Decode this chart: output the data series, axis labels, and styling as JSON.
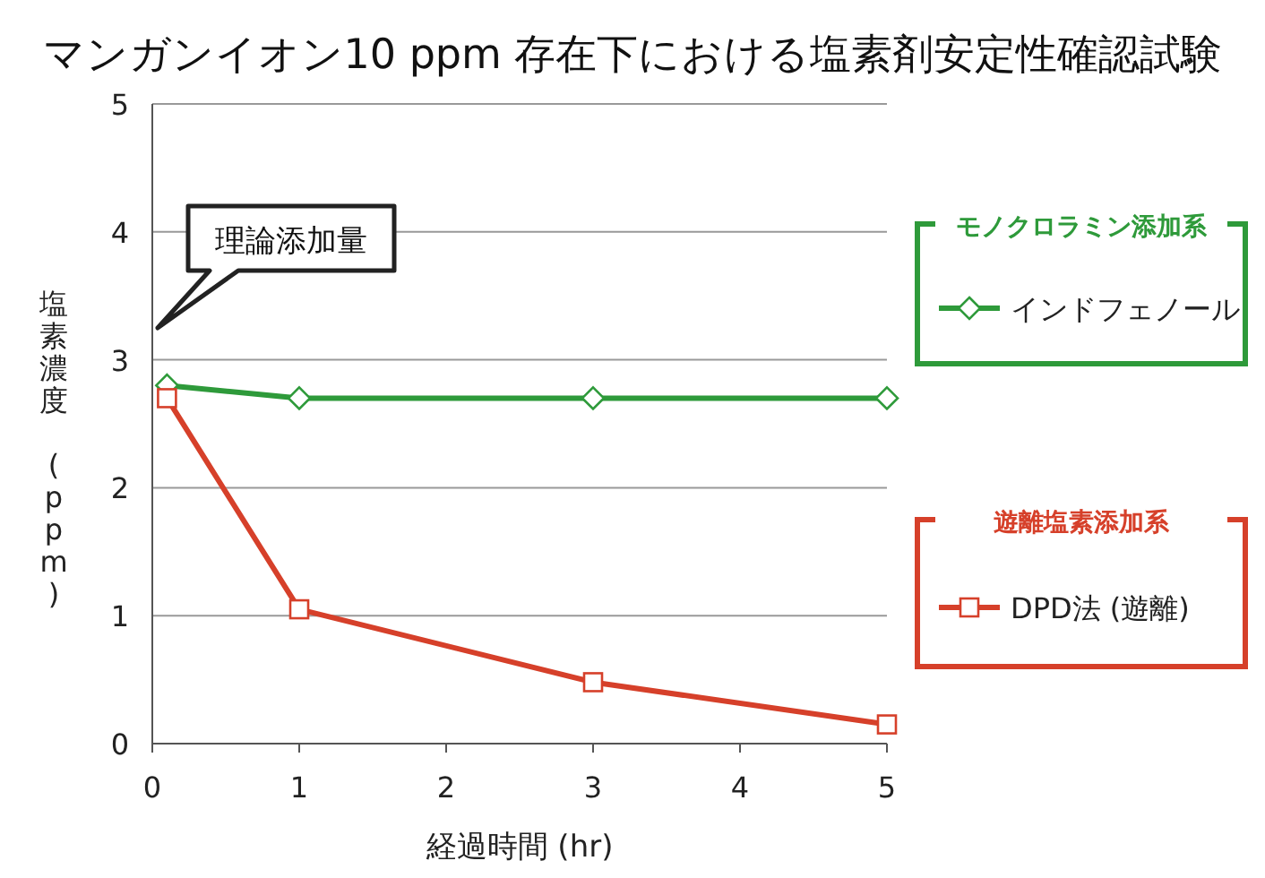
{
  "chart_data": {
    "type": "line",
    "title": "マンガンイオン10 ppm 存在下における塩素剤安定性確認試験",
    "xlabel": "経過時間 (hr)",
    "ylabel": "塩素濃度 (ppm)",
    "xlim": [
      0,
      5
    ],
    "xticks": [
      0,
      1,
      2,
      3,
      4,
      5
    ],
    "ylim": [
      0,
      5
    ],
    "yticks": [
      0,
      1,
      2,
      3,
      4,
      5
    ],
    "grid": "y",
    "legend": "right",
    "series": [
      {
        "name": "インドフェノール",
        "color": "#2e9a3a",
        "marker": "diamond",
        "x": [
          0.1,
          1,
          3,
          5
        ],
        "values": [
          2.8,
          2.7,
          2.7,
          2.7
        ]
      },
      {
        "name": "DPD法 (遊離)",
        "color": "#d6402a",
        "marker": "square",
        "x": [
          0.1,
          1,
          3,
          5
        ],
        "values": [
          2.7,
          1.05,
          0.48,
          0.15
        ]
      }
    ],
    "annotations": [
      "理論添加量",
      "モノクロラミン添加系",
      "遊離塩素添加系"
    ]
  }
}
